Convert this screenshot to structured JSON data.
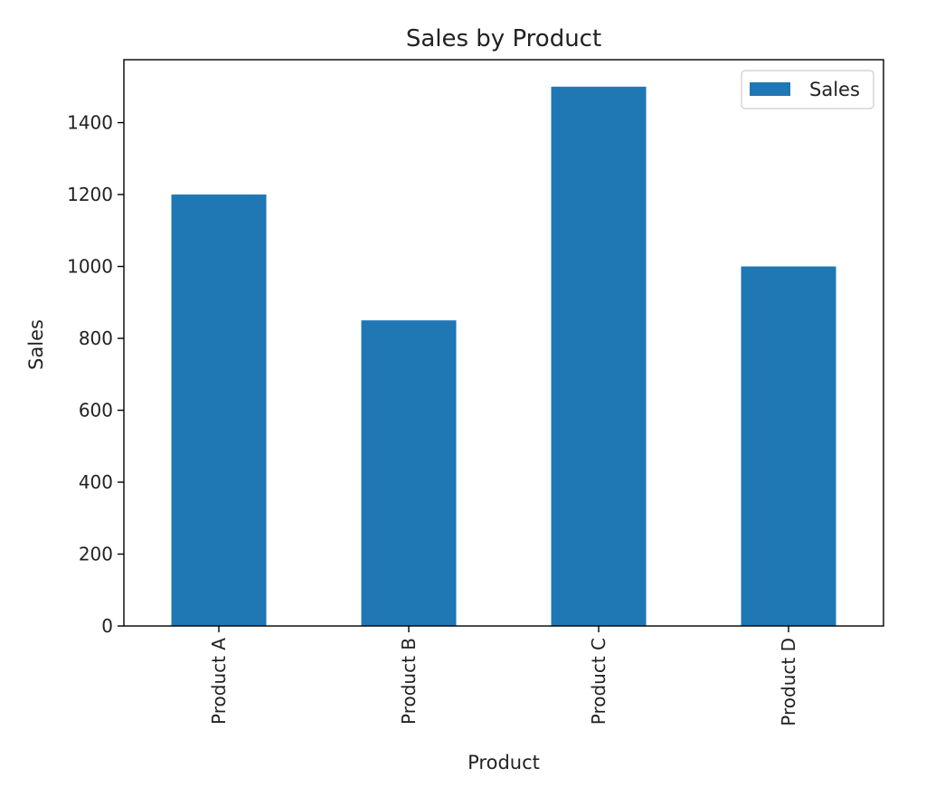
{
  "chart_data": {
    "type": "bar",
    "title": "Sales by Product",
    "xlabel": "Product",
    "ylabel": "Sales",
    "categories": [
      "Product A",
      "Product B",
      "Product C",
      "Product D"
    ],
    "series": [
      {
        "name": "Sales",
        "values": [
          1200,
          850,
          1500,
          1000
        ],
        "color": "#1f77b4"
      }
    ],
    "ylim": [
      0,
      1575
    ],
    "yticks": [
      0,
      200,
      400,
      600,
      800,
      1000,
      1200,
      1400
    ],
    "grid": false,
    "legend": {
      "position": "top-right",
      "entries": [
        "Sales"
      ]
    }
  }
}
